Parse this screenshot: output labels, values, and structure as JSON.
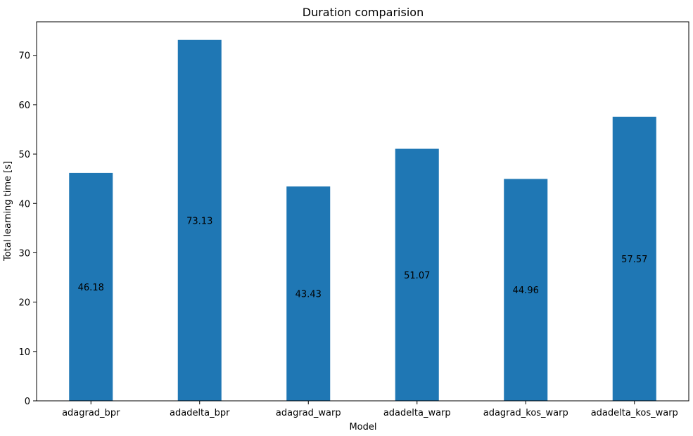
{
  "chart_data": {
    "type": "bar",
    "title": "Duration comparision",
    "xlabel": "Model",
    "ylabel": "Total learning time [s]",
    "categories": [
      "adagrad_bpr",
      "adadelta_bpr",
      "adagrad_warp",
      "adadelta_warp",
      "adagrad_kos_warp",
      "adadelta_kos_warp"
    ],
    "values": [
      46.18,
      73.13,
      43.43,
      51.07,
      44.96,
      57.57
    ],
    "data_labels": [
      "46.18",
      "73.13",
      "43.43",
      "51.07",
      "44.96",
      "57.57"
    ],
    "yticks": [
      0,
      10,
      20,
      30,
      40,
      50,
      60,
      70
    ],
    "ylim": [
      0,
      76.8
    ],
    "grid": false,
    "bar_color": "#1f77b4"
  }
}
